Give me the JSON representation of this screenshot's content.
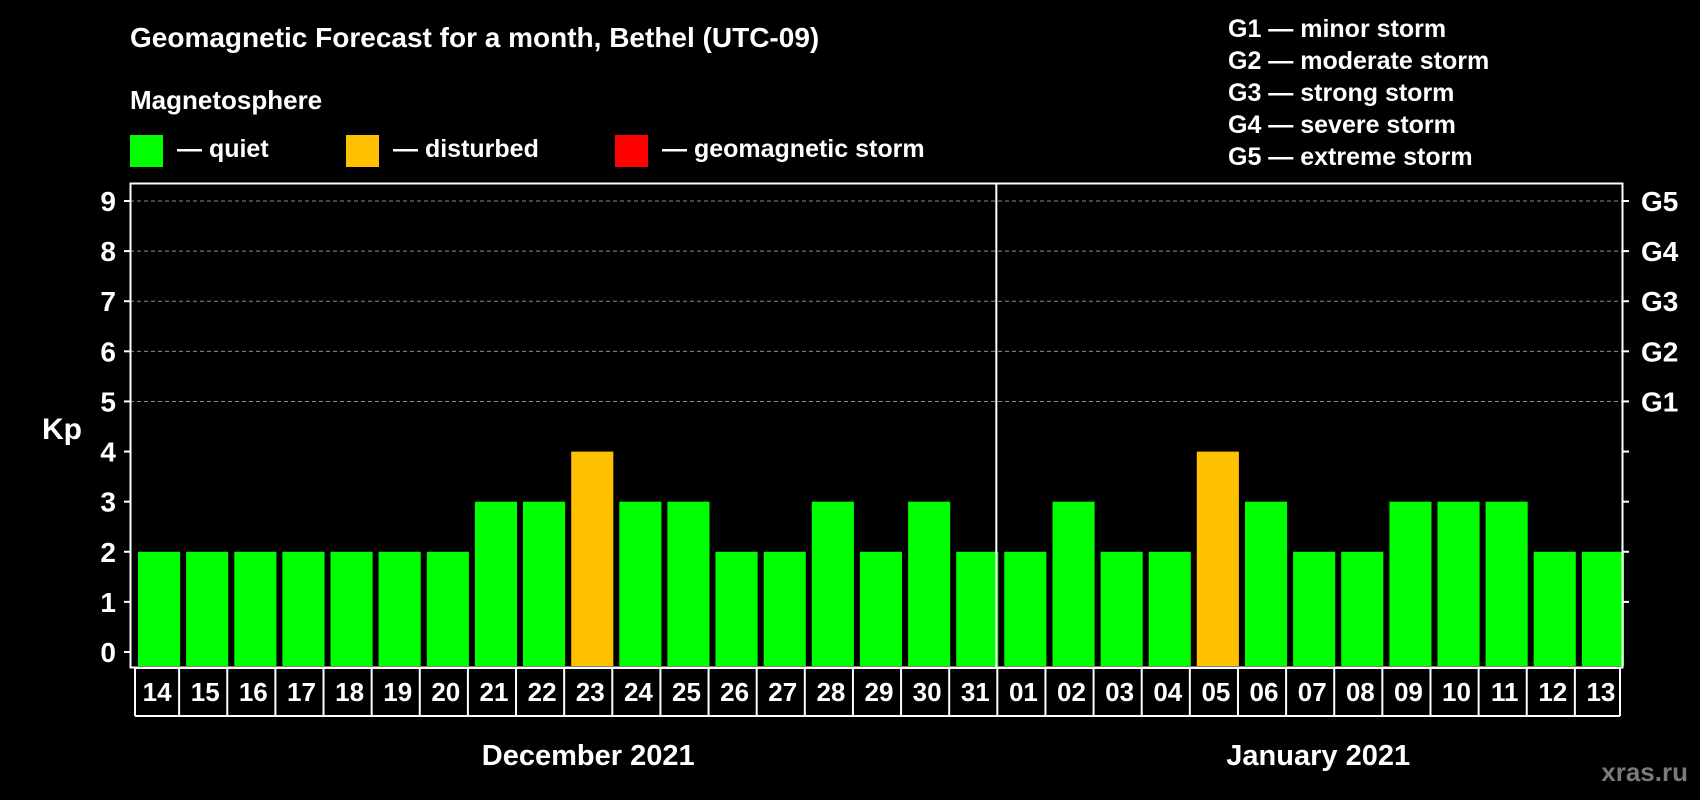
{
  "colors": {
    "quiet": "#00ff00",
    "disturbed": "#ffc000",
    "storm": "#ff0000",
    "background": "#000000",
    "foreground": "#ffffff",
    "grid": "#8c8c8c",
    "watermark": "#7a7a7a"
  },
  "legend": {
    "heading": "Magnetosphere",
    "items": [
      {
        "key": "quiet",
        "label": "— quiet"
      },
      {
        "key": "disturbed",
        "label": "— disturbed"
      },
      {
        "key": "storm",
        "label": "— geomagnetic storm"
      }
    ]
  },
  "storm_scale": [
    "G1 — minor storm",
    "G2 — moderate storm",
    "G3 — strong storm",
    "G4 — severe storm",
    "G5 — extreme storm"
  ],
  "watermark": "xras.ru",
  "chart_data": {
    "type": "bar",
    "title": "Geomagnetic Forecast for a month, Bethel (UTC-09)",
    "ylabel": "Kp",
    "xlabel": "",
    "ylim": [
      0,
      9
    ],
    "yticks": [
      0,
      1,
      2,
      3,
      4,
      5,
      6,
      7,
      8,
      9
    ],
    "grid": true,
    "right_axis": [
      {
        "kp": 5,
        "label": "G1"
      },
      {
        "kp": 6,
        "label": "G2"
      },
      {
        "kp": 7,
        "label": "G3"
      },
      {
        "kp": 8,
        "label": "G4"
      },
      {
        "kp": 9,
        "label": "G5"
      }
    ],
    "months": [
      {
        "label": "December 2021",
        "categories": [
          "14",
          "15",
          "16",
          "17",
          "18",
          "19",
          "20",
          "21",
          "22",
          "23",
          "24",
          "25",
          "26",
          "27",
          "28",
          "29",
          "30",
          "31"
        ]
      },
      {
        "label": "January 2021",
        "categories": [
          "01",
          "02",
          "03",
          "04",
          "05",
          "06",
          "07",
          "08",
          "09",
          "10",
          "11",
          "12",
          "13"
        ]
      }
    ],
    "categories": [
      "14",
      "15",
      "16",
      "17",
      "18",
      "19",
      "20",
      "21",
      "22",
      "23",
      "24",
      "25",
      "26",
      "27",
      "28",
      "29",
      "30",
      "31",
      "01",
      "02",
      "03",
      "04",
      "05",
      "06",
      "07",
      "08",
      "09",
      "10",
      "11",
      "12",
      "13"
    ],
    "values": [
      2,
      2,
      2,
      2,
      2,
      2,
      2,
      3,
      3,
      4,
      3,
      3,
      2,
      2,
      3,
      2,
      3,
      2,
      2,
      3,
      2,
      2,
      4,
      3,
      2,
      2,
      3,
      3,
      3,
      2,
      2
    ],
    "levels": [
      "quiet",
      "quiet",
      "quiet",
      "quiet",
      "quiet",
      "quiet",
      "quiet",
      "quiet",
      "quiet",
      "disturbed",
      "quiet",
      "quiet",
      "quiet",
      "quiet",
      "quiet",
      "quiet",
      "quiet",
      "quiet",
      "quiet",
      "quiet",
      "quiet",
      "quiet",
      "disturbed",
      "quiet",
      "quiet",
      "quiet",
      "quiet",
      "quiet",
      "quiet",
      "quiet",
      "quiet"
    ]
  }
}
